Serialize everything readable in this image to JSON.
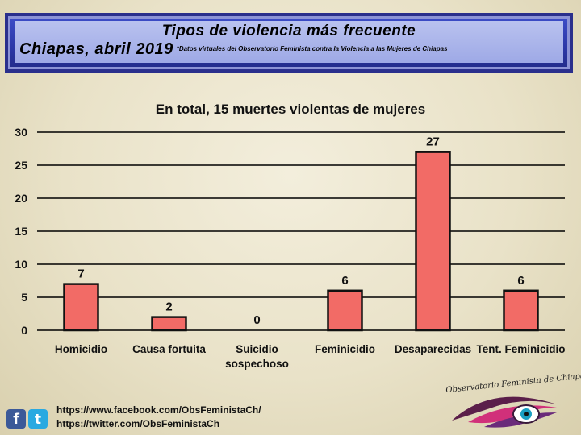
{
  "header": {
    "title_line1": "Tipos de violencia más frecuente",
    "title_line2": "Chiapas, abril 2019",
    "note": "*Datos virtuales del Observatorio Feminista contra la Violencia a las Mujeres de Chiapas"
  },
  "chart_data": {
    "type": "bar",
    "title": "En total, 15 muertes violentas de mujeres",
    "categories": [
      "Homicidio",
      "Causa fortuita",
      "Suicidio sospechoso",
      "Feminicidio",
      "Desaparecidas",
      "Tent. Feminicidio"
    ],
    "category_lines": [
      [
        "Homicidio"
      ],
      [
        "Causa fortuita"
      ],
      [
        "Suicidio",
        "sospechoso"
      ],
      [
        "Feminicidio"
      ],
      [
        "Desaparecidas"
      ],
      [
        "Tent. Feminicidio"
      ]
    ],
    "values": [
      7,
      2,
      0,
      6,
      27,
      6
    ],
    "ylim": [
      0,
      30
    ],
    "yticks": [
      0,
      5,
      10,
      15,
      20,
      25,
      30
    ],
    "grid": true,
    "data_labels": true,
    "bar_color": "#f26b66",
    "bar_edge_color": "#111111"
  },
  "footer": {
    "facebook_url": "https://www.facebook.com/ObsFeministaCh/",
    "twitter_url": "https://twitter.com/ObsFeministaCh",
    "logo_text": "Observatorio Feminista de Chiapas",
    "icons": [
      "facebook-icon",
      "twitter-icon",
      "observatory-logo-icon"
    ]
  }
}
